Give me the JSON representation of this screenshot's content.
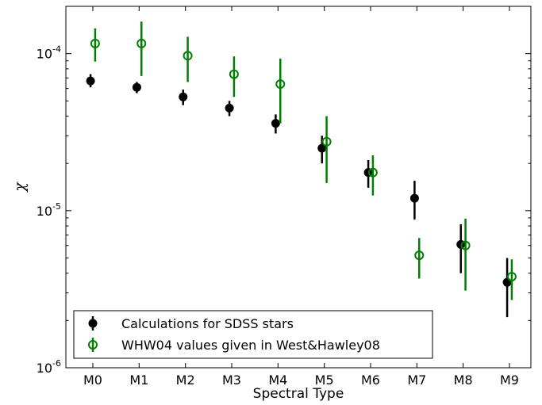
{
  "chart_data": {
    "type": "scatter",
    "title": "",
    "xlabel": "Spectral Type",
    "ylabel": "χ",
    "y_scale": "log",
    "ylim": [
      1e-06,
      0.0002
    ],
    "categories": [
      "M0",
      "M1",
      "M2",
      "M3",
      "M4",
      "M5",
      "M6",
      "M7",
      "M8",
      "M9"
    ],
    "y_ticks": [
      {
        "value": 1e-06,
        "base": "10",
        "exp": "-6"
      },
      {
        "value": 1e-05,
        "base": "10",
        "exp": "-5"
      },
      {
        "value": 0.0001,
        "base": "10",
        "exp": "-4"
      }
    ],
    "legend_position": "bottom-left",
    "grid": false,
    "series": [
      {
        "name": "Calculations for SDSS stars",
        "marker": "filled-circle",
        "color": "#000000",
        "x_offset": -0.05,
        "points": [
          {
            "y": 6.7e-05,
            "lo": 6.1e-05,
            "hi": 7.4e-05
          },
          {
            "y": 6.1e-05,
            "lo": 5.6e-05,
            "hi": 6.6e-05
          },
          {
            "y": 5.3e-05,
            "lo": 4.7e-05,
            "hi": 5.9e-05
          },
          {
            "y": 4.5e-05,
            "lo": 4e-05,
            "hi": 5e-05
          },
          {
            "y": 3.6e-05,
            "lo": 3.1e-05,
            "hi": 4.1e-05
          },
          {
            "y": 2.5e-05,
            "lo": 2e-05,
            "hi": 3e-05
          },
          {
            "y": 1.75e-05,
            "lo": 1.4e-05,
            "hi": 2.1e-05
          },
          {
            "y": 1.2e-05,
            "lo": 8.8e-06,
            "hi": 1.55e-05
          },
          {
            "y": 6.1e-06,
            "lo": 4e-06,
            "hi": 8.2e-06
          },
          {
            "y": 3.5e-06,
            "lo": 2.1e-06,
            "hi": 5e-06
          }
        ]
      },
      {
        "name": "WHW04 values given in West&Hawley08",
        "marker": "open-circle",
        "color": "#008000",
        "x_offset": 0.05,
        "points": [
          {
            "y": 0.000116,
            "lo": 8.9e-05,
            "hi": 0.000145
          },
          {
            "y": 0.000116,
            "lo": 7.2e-05,
            "hi": 0.00016
          },
          {
            "y": 9.7e-05,
            "lo": 6.6e-05,
            "hi": 0.000128
          },
          {
            "y": 7.4e-05,
            "lo": 5.3e-05,
            "hi": 9.6e-05
          },
          {
            "y": 6.4e-05,
            "lo": 3.6e-05,
            "hi": 9.3e-05
          },
          {
            "y": 2.75e-05,
            "lo": 1.5e-05,
            "hi": 4e-05
          },
          {
            "y": 1.75e-05,
            "lo": 1.25e-05,
            "hi": 2.25e-05
          },
          {
            "y": 5.2e-06,
            "lo": 3.7e-06,
            "hi": 6.7e-06
          },
          {
            "y": 6e-06,
            "lo": 3.1e-06,
            "hi": 8.9e-06
          },
          {
            "y": 3.8e-06,
            "lo": 2.7e-06,
            "hi": 4.9e-06
          }
        ]
      }
    ]
  }
}
